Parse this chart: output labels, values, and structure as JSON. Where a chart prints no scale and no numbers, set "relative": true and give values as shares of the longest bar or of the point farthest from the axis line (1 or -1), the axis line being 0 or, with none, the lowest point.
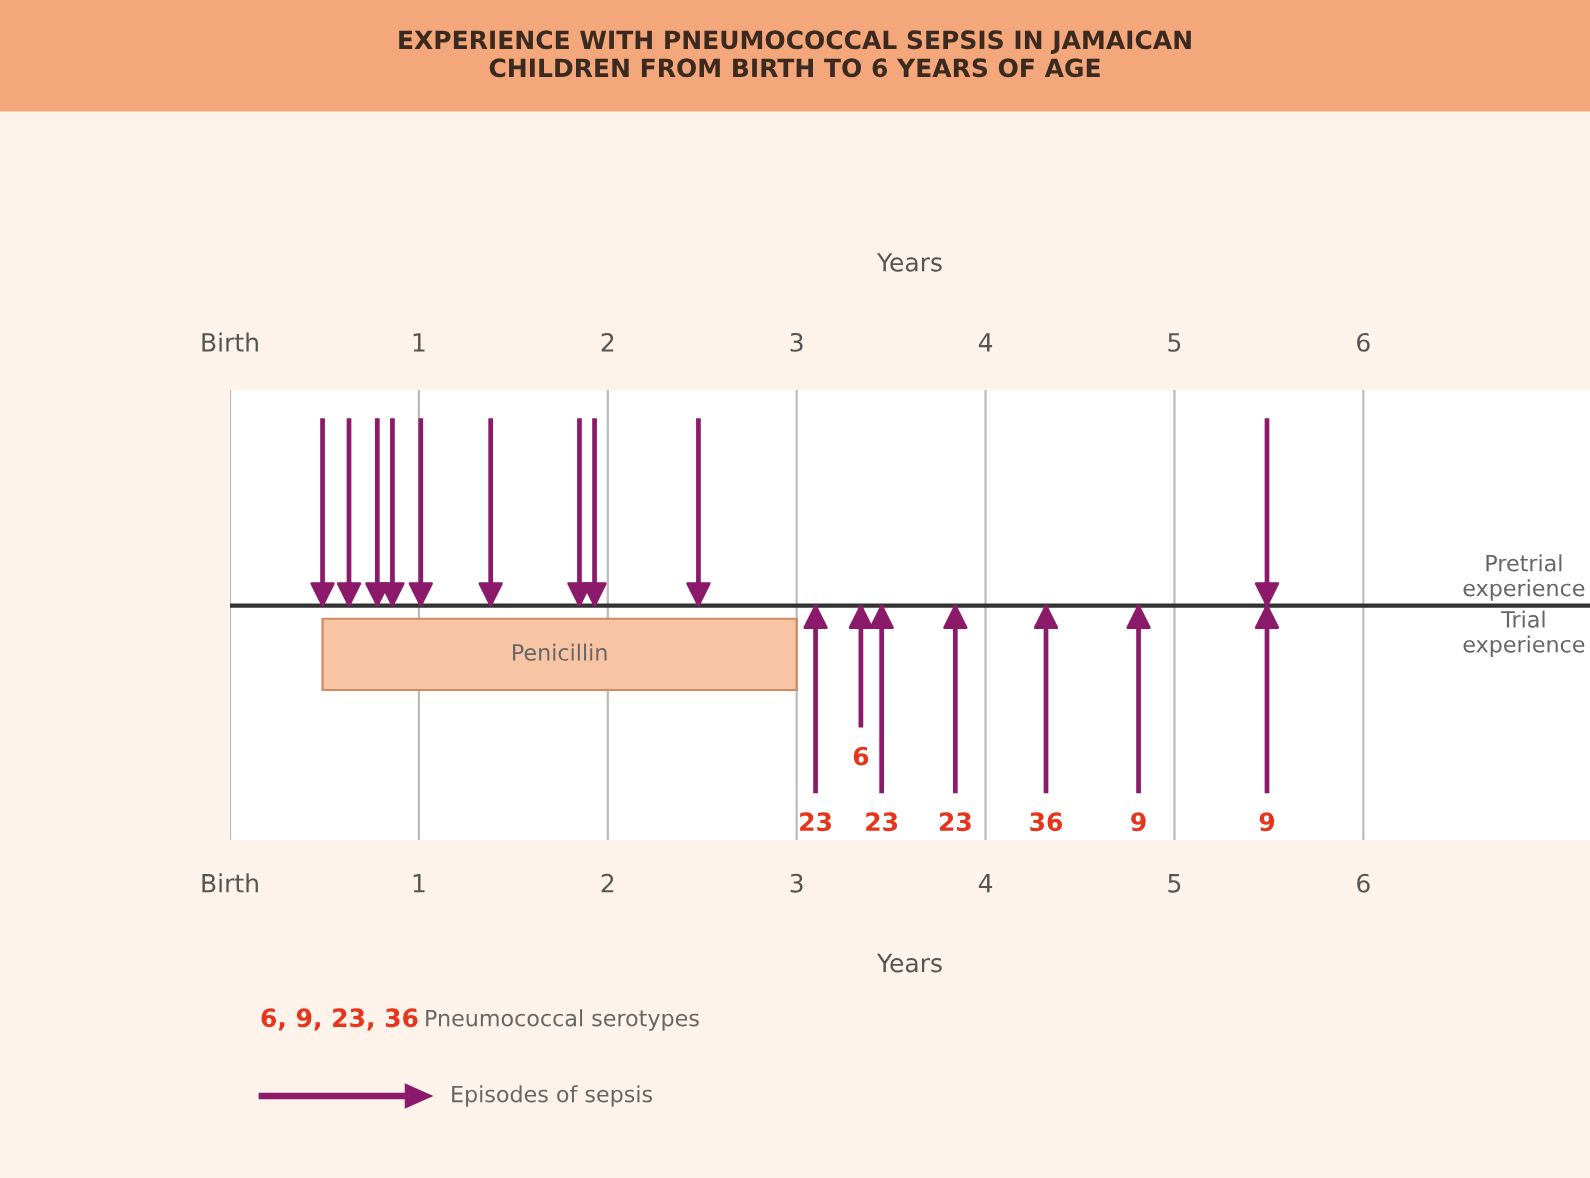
{
  "chart_data": {
    "type": "bar",
    "title": "EXPERIENCE WITH PNEUMOCOCCAL SEPSIS IN JAMAICAN\nCHILDREN FROM BIRTH TO 6 YEARS OF AGE",
    "xlabel": "Years",
    "x2label": "Years",
    "relative": true,
    "xlim": [
      0,
      7.2
    ],
    "xticks": [
      {
        "value": 0,
        "label": "Birth"
      },
      1,
      2,
      3,
      4,
      5,
      6
    ],
    "x2lim": [
      0,
      7.2
    ],
    "x2ticks": [
      {
        "value": 0,
        "label": "Birth"
      },
      1,
      2,
      3,
      4,
      5,
      6
    ],
    "grid": "x",
    "series": [
      {
        "name": "Pretrial experience",
        "color": "#8b1a6b",
        "x": [
          0.49,
          0.63,
          0.78,
          0.86,
          1.01,
          1.38,
          1.85,
          1.93,
          2.48,
          5.49
        ],
        "values": [
          1,
          1,
          1,
          1,
          1,
          1,
          1,
          1,
          1,
          1
        ]
      },
      {
        "name": "Trial experience",
        "color": "#8b1a6b",
        "x": [
          3.1,
          3.34,
          3.45,
          3.84,
          4.32,
          4.81,
          5.49
        ],
        "values": [
          -1,
          -0.65,
          -1,
          -1,
          -1,
          -1,
          -1
        ]
      }
    ],
    "bands": [
      {
        "axis": "x",
        "from": 0.49,
        "to": 3.0,
        "label": "Penicillin",
        "color": "#f7c4a4"
      }
    ],
    "annotations": [
      {
        "text": "23",
        "x": 3.1,
        "y": -1
      },
      {
        "text": "6",
        "x": 3.34,
        "y": -0.65
      },
      {
        "text": "23",
        "x": 3.45,
        "y": -1
      },
      {
        "text": "23",
        "x": 3.84,
        "y": -1
      },
      {
        "text": "36",
        "x": 4.32,
        "y": -1
      },
      {
        "text": "9",
        "x": 4.81,
        "y": -1
      },
      {
        "text": "9",
        "x": 5.49,
        "y": -1
      },
      "6, 9, 23, 36",
      "Pneumococcal serotypes",
      "Episodes of sepsis"
    ]
  }
}
